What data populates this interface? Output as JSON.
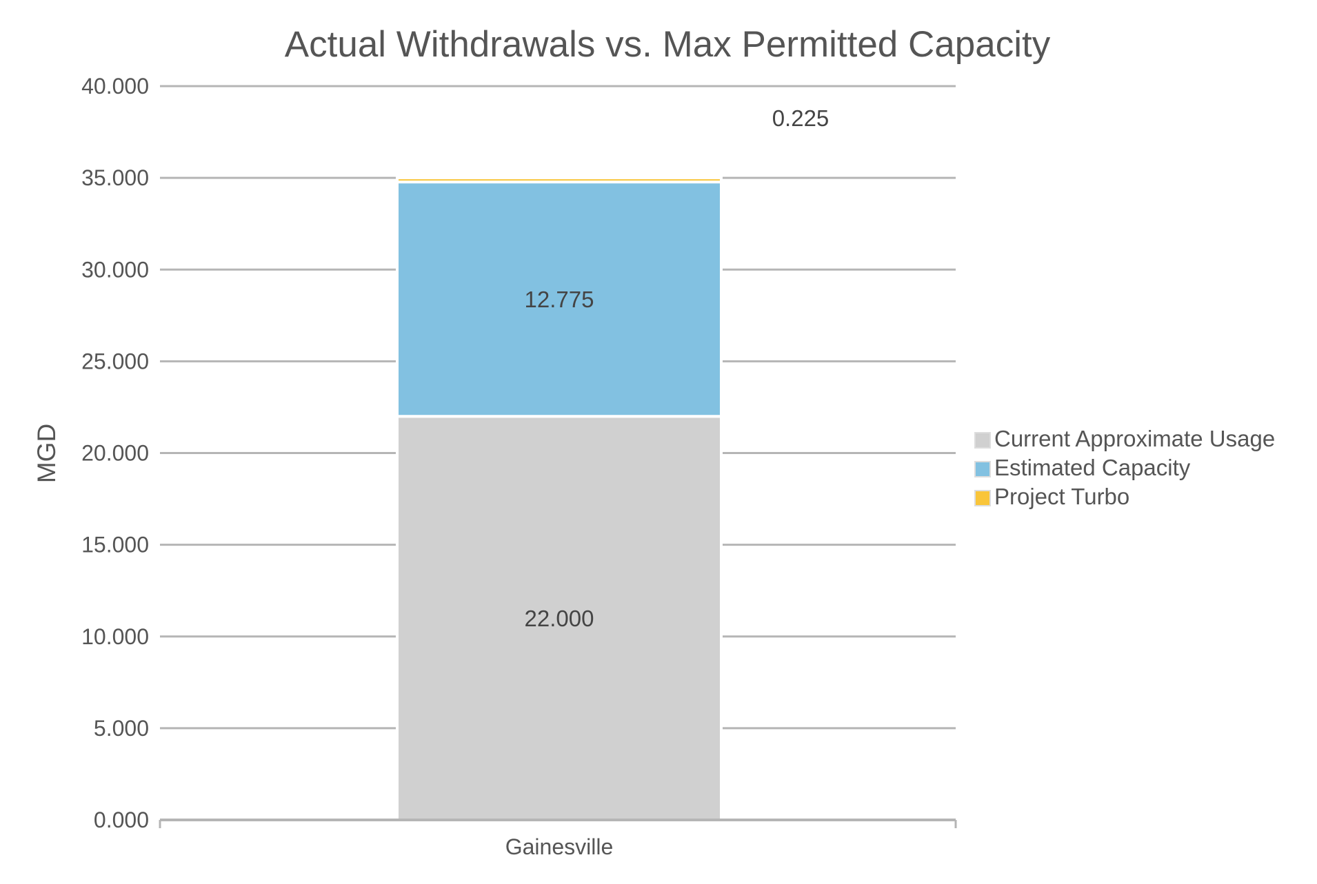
{
  "chart_data": {
    "type": "bar",
    "stacked": true,
    "title": "Actual Withdrawals vs. Max Permitted Capacity",
    "xlabel": "",
    "ylabel": "MGD",
    "ylim": [
      0,
      40
    ],
    "yticks": [
      0,
      5,
      10,
      15,
      20,
      25,
      30,
      35,
      40
    ],
    "ytick_labels": [
      "0.000",
      "5.000",
      "10.000",
      "15.000",
      "20.000",
      "25.000",
      "30.000",
      "35.000",
      "40.000"
    ],
    "grid": true,
    "legend_position": "right",
    "categories": [
      "Gainesville"
    ],
    "series": [
      {
        "name": "Current Approximate Usage",
        "values": [
          22.0
        ],
        "labels": [
          "22.000"
        ],
        "color": "#d0d0d0"
      },
      {
        "name": "Estimated Capacity",
        "values": [
          12.775
        ],
        "labels": [
          "12.775"
        ],
        "color": "#82c1e1"
      },
      {
        "name": "Project Turbo",
        "values": [
          0.225
        ],
        "labels": [
          "0.225"
        ],
        "color": "#f9c53a"
      }
    ]
  }
}
